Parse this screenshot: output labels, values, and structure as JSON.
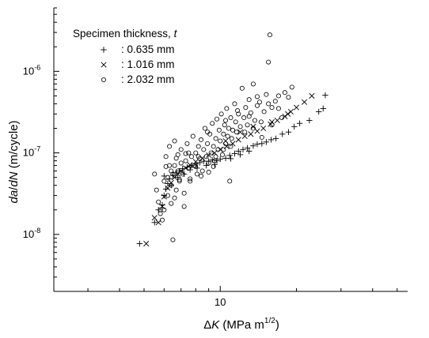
{
  "chart_data": {
    "type": "scatter",
    "x_scale": "log",
    "y_scale": "log",
    "xlim": [
      2.2,
      55
    ],
    "ylim": [
      2e-09,
      6e-06
    ],
    "grid": false,
    "x_tick_labels": [
      {
        "value": 10,
        "text": "10"
      }
    ],
    "y_tick_labels": [
      {
        "value": 1e-08,
        "base": "10",
        "exp": "-8"
      },
      {
        "value": 1e-07,
        "base": "10",
        "exp": "-7"
      },
      {
        "value": 1e-06,
        "base": "10",
        "exp": "-6"
      }
    ],
    "xlabel": {
      "prefix": "Δ",
      "symbol": "K",
      "unit": " (MPa m",
      "exp": "1/2",
      "suffix": ")"
    },
    "ylabel": {
      "symbol1": "da",
      "slash": "/",
      "symbol2": "dN",
      "unit": " (m/cycle)"
    },
    "legend": {
      "position": "top-left",
      "title_text": "Specimen thickness, ",
      "title_symbol": "t",
      "entries": [
        {
          "marker": "plus",
          "label": ": 0.635 mm"
        },
        {
          "marker": "cross",
          "label": ": 1.016 mm"
        },
        {
          "marker": "circle",
          "label": ": 2.032 mm"
        }
      ]
    },
    "series": [
      {
        "marker": "plus",
        "points": [
          [
            4.8,
            7.7e-09
          ],
          [
            5.5,
            1.4e-08
          ],
          [
            5.7,
            2e-08
          ],
          [
            5.9,
            2.3e-08
          ],
          [
            6.0,
            3e-08
          ],
          [
            6.1,
            3.6e-08
          ],
          [
            6.2,
            4.2e-08
          ],
          [
            6.3,
            4.8e-08
          ],
          [
            6.5,
            5.3e-08
          ],
          [
            6.7,
            5.7e-08
          ],
          [
            6.9,
            6e-08
          ],
          [
            7.1,
            6.4e-08
          ],
          [
            7.4,
            6.7e-08
          ],
          [
            7.7,
            7e-08
          ],
          [
            8.0,
            7.3e-08
          ],
          [
            8.3,
            7.6e-08
          ],
          [
            8.6,
            7.9e-08
          ],
          [
            9.0,
            7.9e-08
          ],
          [
            9.3,
            8.2e-08
          ],
          [
            9.7,
            8e-08
          ],
          [
            10.0,
            8.4e-08
          ],
          [
            10.5,
            8.6e-08
          ],
          [
            10.9,
            9.3e-08
          ],
          [
            11.4,
            9.8e-08
          ],
          [
            11.8,
            1.05e-07
          ],
          [
            12.3,
            1.1e-07
          ],
          [
            12.8,
            1.15e-07
          ],
          [
            13.5,
            1.22e-07
          ],
          [
            14.0,
            1.28e-07
          ],
          [
            14.6,
            1.3e-07
          ],
          [
            15.2,
            1.36e-07
          ],
          [
            15.9,
            1.45e-07
          ],
          [
            16.6,
            1.5e-07
          ],
          [
            17.6,
            1.7e-07
          ],
          [
            18.6,
            1.8e-07
          ],
          [
            19.6,
            2.1e-07
          ],
          [
            20.6,
            2.3e-07
          ],
          [
            22.5,
            2.5e-07
          ],
          [
            24.5,
            3.2e-07
          ],
          [
            25.5,
            3.5e-07
          ],
          [
            26.0,
            5.1e-07
          ],
          [
            6.0,
            5.2e-08
          ],
          [
            6.4,
            4e-08
          ],
          [
            6.8,
            5e-08
          ],
          [
            7.2,
            5.5e-08
          ],
          [
            7.6,
            6.2e-08
          ],
          [
            8.1,
            6.5e-08
          ],
          [
            8.8,
            7e-08
          ],
          [
            9.5,
            7.2e-08
          ],
          [
            11.0,
            8.5e-08
          ],
          [
            12.0,
            9.5e-08
          ],
          [
            13.0,
            1.05e-07
          ]
        ]
      },
      {
        "marker": "cross",
        "points": [
          [
            5.1,
            7.7e-09
          ],
          [
            5.5,
            1.6e-08
          ],
          [
            5.7,
            1.4e-08
          ],
          [
            5.9,
            2.2e-08
          ],
          [
            6.0,
            2.9e-08
          ],
          [
            6.2,
            3.7e-08
          ],
          [
            6.4,
            4.3e-08
          ],
          [
            6.6,
            5e-08
          ],
          [
            6.8,
            5.5e-08
          ],
          [
            7.0,
            6e-08
          ],
          [
            7.3,
            6.5e-08
          ],
          [
            7.6,
            7.1e-08
          ],
          [
            8.0,
            7.8e-08
          ],
          [
            8.5,
            8.6e-08
          ],
          [
            9.0,
            9.4e-08
          ],
          [
            9.5,
            1e-07
          ],
          [
            10.0,
            1.1e-07
          ],
          [
            10.6,
            1.2e-07
          ],
          [
            11.2,
            1.3e-07
          ],
          [
            11.8,
            1.45e-07
          ],
          [
            12.5,
            1.6e-07
          ],
          [
            13.2,
            1.7e-07
          ],
          [
            14.0,
            1.85e-07
          ],
          [
            14.8,
            2e-07
          ],
          [
            15.8,
            2.25e-07
          ],
          [
            16.8,
            2.5e-07
          ],
          [
            18.0,
            2.8e-07
          ],
          [
            19.0,
            3.2e-07
          ],
          [
            20.0,
            3.6e-07
          ],
          [
            21.5,
            4.2e-07
          ],
          [
            23.0,
            5e-07
          ],
          [
            10.5,
            1.4e-07
          ],
          [
            12.0,
            1.8e-07
          ],
          [
            13.5,
            2.1e-07
          ],
          [
            16.0,
            2.4e-07
          ],
          [
            18.5,
            3e-07
          ]
        ]
      },
      {
        "marker": "circle",
        "points": [
          [
            5.5,
            5.5e-08
          ],
          [
            5.6,
            3.5e-08
          ],
          [
            5.7,
            2.5e-08
          ],
          [
            5.8,
            2e-08
          ],
          [
            5.9,
            1.5e-08
          ],
          [
            6.0,
            4.5e-08
          ],
          [
            6.1,
            6.8e-08
          ],
          [
            6.1,
            9e-08
          ],
          [
            6.2,
            3e-08
          ],
          [
            6.2,
            5e-08
          ],
          [
            6.3,
            1.2e-07
          ],
          [
            6.3,
            7e-08
          ],
          [
            6.4,
            2.4e-08
          ],
          [
            6.4,
            4e-08
          ],
          [
            6.5,
            5.5e-08
          ],
          [
            6.5,
            8.6e-09
          ],
          [
            6.6,
            7e-08
          ],
          [
            6.6,
            1.4e-07
          ],
          [
            6.7,
            3.5e-08
          ],
          [
            6.8,
            6e-08
          ],
          [
            6.8,
            9.5e-08
          ],
          [
            6.9,
            4.5e-08
          ],
          [
            7.0,
            7.5e-08
          ],
          [
            7.0,
            1.1e-07
          ],
          [
            7.1,
            5.5e-08
          ],
          [
            7.2,
            2.2e-08
          ],
          [
            7.3,
            8e-08
          ],
          [
            7.4,
            1.3e-07
          ],
          [
            7.5,
            6.5e-08
          ],
          [
            7.6,
            4.8e-08
          ],
          [
            7.7,
            9e-08
          ],
          [
            7.8,
            1.6e-07
          ],
          [
            7.9,
            7e-08
          ],
          [
            8.0,
            1e-07
          ],
          [
            8.1,
            5.5e-08
          ],
          [
            8.2,
            1.2e-07
          ],
          [
            8.3,
            8.5e-08
          ],
          [
            8.4,
            1.45e-07
          ],
          [
            8.5,
            6e-08
          ],
          [
            8.6,
            1.1e-07
          ],
          [
            8.7,
            2e-07
          ],
          [
            8.8,
            9e-08
          ],
          [
            8.9,
            1.3e-07
          ],
          [
            9.0,
            7.5e-08
          ],
          [
            9.1,
            1.7e-07
          ],
          [
            9.2,
            1e-07
          ],
          [
            9.3,
            2.3e-07
          ],
          [
            9.4,
            1.2e-07
          ],
          [
            9.5,
            8e-08
          ],
          [
            9.6,
            1.5e-07
          ],
          [
            9.7,
            2.6e-07
          ],
          [
            9.8,
            1.1e-07
          ],
          [
            9.9,
            1.9e-07
          ],
          [
            10.0,
            1.4e-07
          ],
          [
            10.1,
            3e-07
          ],
          [
            10.2,
            9.5e-08
          ],
          [
            10.3,
            1.7e-07
          ],
          [
            10.4,
            2.2e-07
          ],
          [
            10.5,
            1.3e-07
          ],
          [
            10.6,
            3.5e-07
          ],
          [
            10.7,
            1.6e-07
          ],
          [
            10.8,
            2e-07
          ],
          [
            10.9,
            4.5e-08
          ],
          [
            11.0,
            2.7e-07
          ],
          [
            11.1,
            1.5e-07
          ],
          [
            11.2,
            1.9e-07
          ],
          [
            11.4,
            4e-07
          ],
          [
            11.5,
            2.4e-07
          ],
          [
            11.6,
            1.8e-07
          ],
          [
            11.8,
            3e-07
          ],
          [
            12.0,
            2.1e-07
          ],
          [
            12.2,
            6.2e-07
          ],
          [
            12.4,
            2.7e-07
          ],
          [
            12.6,
            3.6e-07
          ],
          [
            12.8,
            2.2e-07
          ],
          [
            13.0,
            4.5e-07
          ],
          [
            13.2,
            3.1e-07
          ],
          [
            13.5,
            7e-07
          ],
          [
            13.7,
            2.5e-07
          ],
          [
            14.0,
            3.8e-07
          ],
          [
            14.3,
            4.2e-07
          ],
          [
            14.6,
            1.55e-07
          ],
          [
            14.9,
            3.2e-07
          ],
          [
            15.2,
            5.2e-07
          ],
          [
            15.5,
            1.3e-06
          ],
          [
            15.7,
            2.8e-06
          ],
          [
            16.0,
            3.6e-07
          ],
          [
            16.5,
            4.3e-07
          ],
          [
            17.0,
            5e-07
          ],
          [
            17.5,
            2.7e-07
          ],
          [
            18.0,
            5.5e-07
          ],
          [
            18.6,
            4.8e-07
          ],
          [
            19.2,
            6.4e-07
          ],
          [
            7.6,
            4.5e-08
          ],
          [
            8.0,
            6.8e-08
          ],
          [
            8.4,
            5.2e-08
          ],
          [
            9.0,
            5.8e-08
          ],
          [
            9.4,
            6.8e-08
          ],
          [
            6.9,
            4.7e-08
          ],
          [
            7.2,
            3.2e-08
          ],
          [
            6.6,
            2.8e-08
          ],
          [
            6.0,
            2e-08
          ],
          [
            5.8,
            1.8e-08
          ],
          [
            7.3,
            9.8e-08
          ],
          [
            8.2,
            9e-08
          ],
          [
            9.6,
            9e-08
          ],
          [
            10.3,
            1.1e-07
          ],
          [
            11.0,
            1.2e-07
          ],
          [
            12.5,
            1.8e-07
          ],
          [
            13.5,
            2e-07
          ],
          [
            14.5,
            2.4e-07
          ],
          [
            16.0,
            2.2e-07
          ],
          [
            6.4,
            6e-08
          ],
          [
            6.7,
            8.6e-08
          ],
          [
            7.5,
            1e-07
          ],
          [
            8.9,
            1.8e-07
          ],
          [
            10.5,
            2.5e-07
          ],
          [
            11.7,
            3.3e-07
          ],
          [
            13.0,
            2.8e-07
          ],
          [
            14.0,
            4.9e-07
          ],
          [
            15.5,
            4e-07
          ],
          [
            17.0,
            3.5e-07
          ]
        ]
      }
    ]
  }
}
